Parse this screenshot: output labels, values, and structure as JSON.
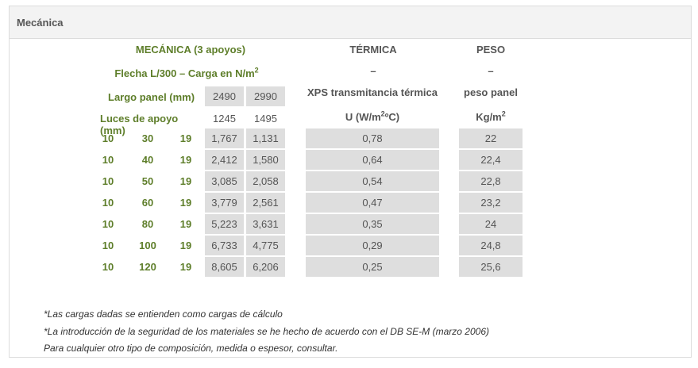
{
  "section_title": "Mecánica",
  "mecanica": {
    "title": "MECÁNICA (3 apoyos)",
    "subtitle_base": "Flecha L/300 – Carga en N/m",
    "subtitle_sup": "2",
    "largo_label": "Largo panel (mm)",
    "largo_values": [
      "2490",
      "2990"
    ],
    "luces_label": "Luces de apoyo (mm)",
    "luces_values": [
      "1245",
      "1495"
    ]
  },
  "termica": {
    "title": "TÉRMICA",
    "dash": "–",
    "desc": "XPS transmitancia térmica",
    "unit_base": "U (W/m",
    "unit_sup": "2",
    "unit_tail": "ºC)"
  },
  "peso": {
    "title": "PESO",
    "dash": "–",
    "desc": "peso panel",
    "unit_base": "Kg/m",
    "unit_sup": "2"
  },
  "rows": [
    {
      "a": "10",
      "b": "30",
      "c": "19",
      "v1": "1,767",
      "v2": "1,131",
      "u": "0,78",
      "p": "22"
    },
    {
      "a": "10",
      "b": "40",
      "c": "19",
      "v1": "2,412",
      "v2": "1,580",
      "u": "0,64",
      "p": "22,4"
    },
    {
      "a": "10",
      "b": "50",
      "c": "19",
      "v1": "3,085",
      "v2": "2,058",
      "u": "0,54",
      "p": "22,8"
    },
    {
      "a": "10",
      "b": "60",
      "c": "19",
      "v1": "3,779",
      "v2": "2,561",
      "u": "0,47",
      "p": "23,2"
    },
    {
      "a": "10",
      "b": "80",
      "c": "19",
      "v1": "5,223",
      "v2": "3,631",
      "u": "0,35",
      "p": "24"
    },
    {
      "a": "10",
      "b": "100",
      "c": "19",
      "v1": "6,733",
      "v2": "4,775",
      "u": "0,29",
      "p": "24,8"
    },
    {
      "a": "10",
      "b": "120",
      "c": "19",
      "v1": "8,605",
      "v2": "6,206",
      "u": "0,25",
      "p": "25,6"
    }
  ],
  "notes": [
    "*Las cargas dadas se entienden como cargas de cálculo",
    "*La introducción de la seguridad de los materiales se he hecho de acuerdo con el DB SE-M (marzo 2006)",
    "Para cualquier otro tipo de composición, medida o espesor, consultar."
  ],
  "colors": {
    "accent_green": "#5e7e2a",
    "cell_gray": "#dedede",
    "header_bg": "#f3f3f3"
  }
}
